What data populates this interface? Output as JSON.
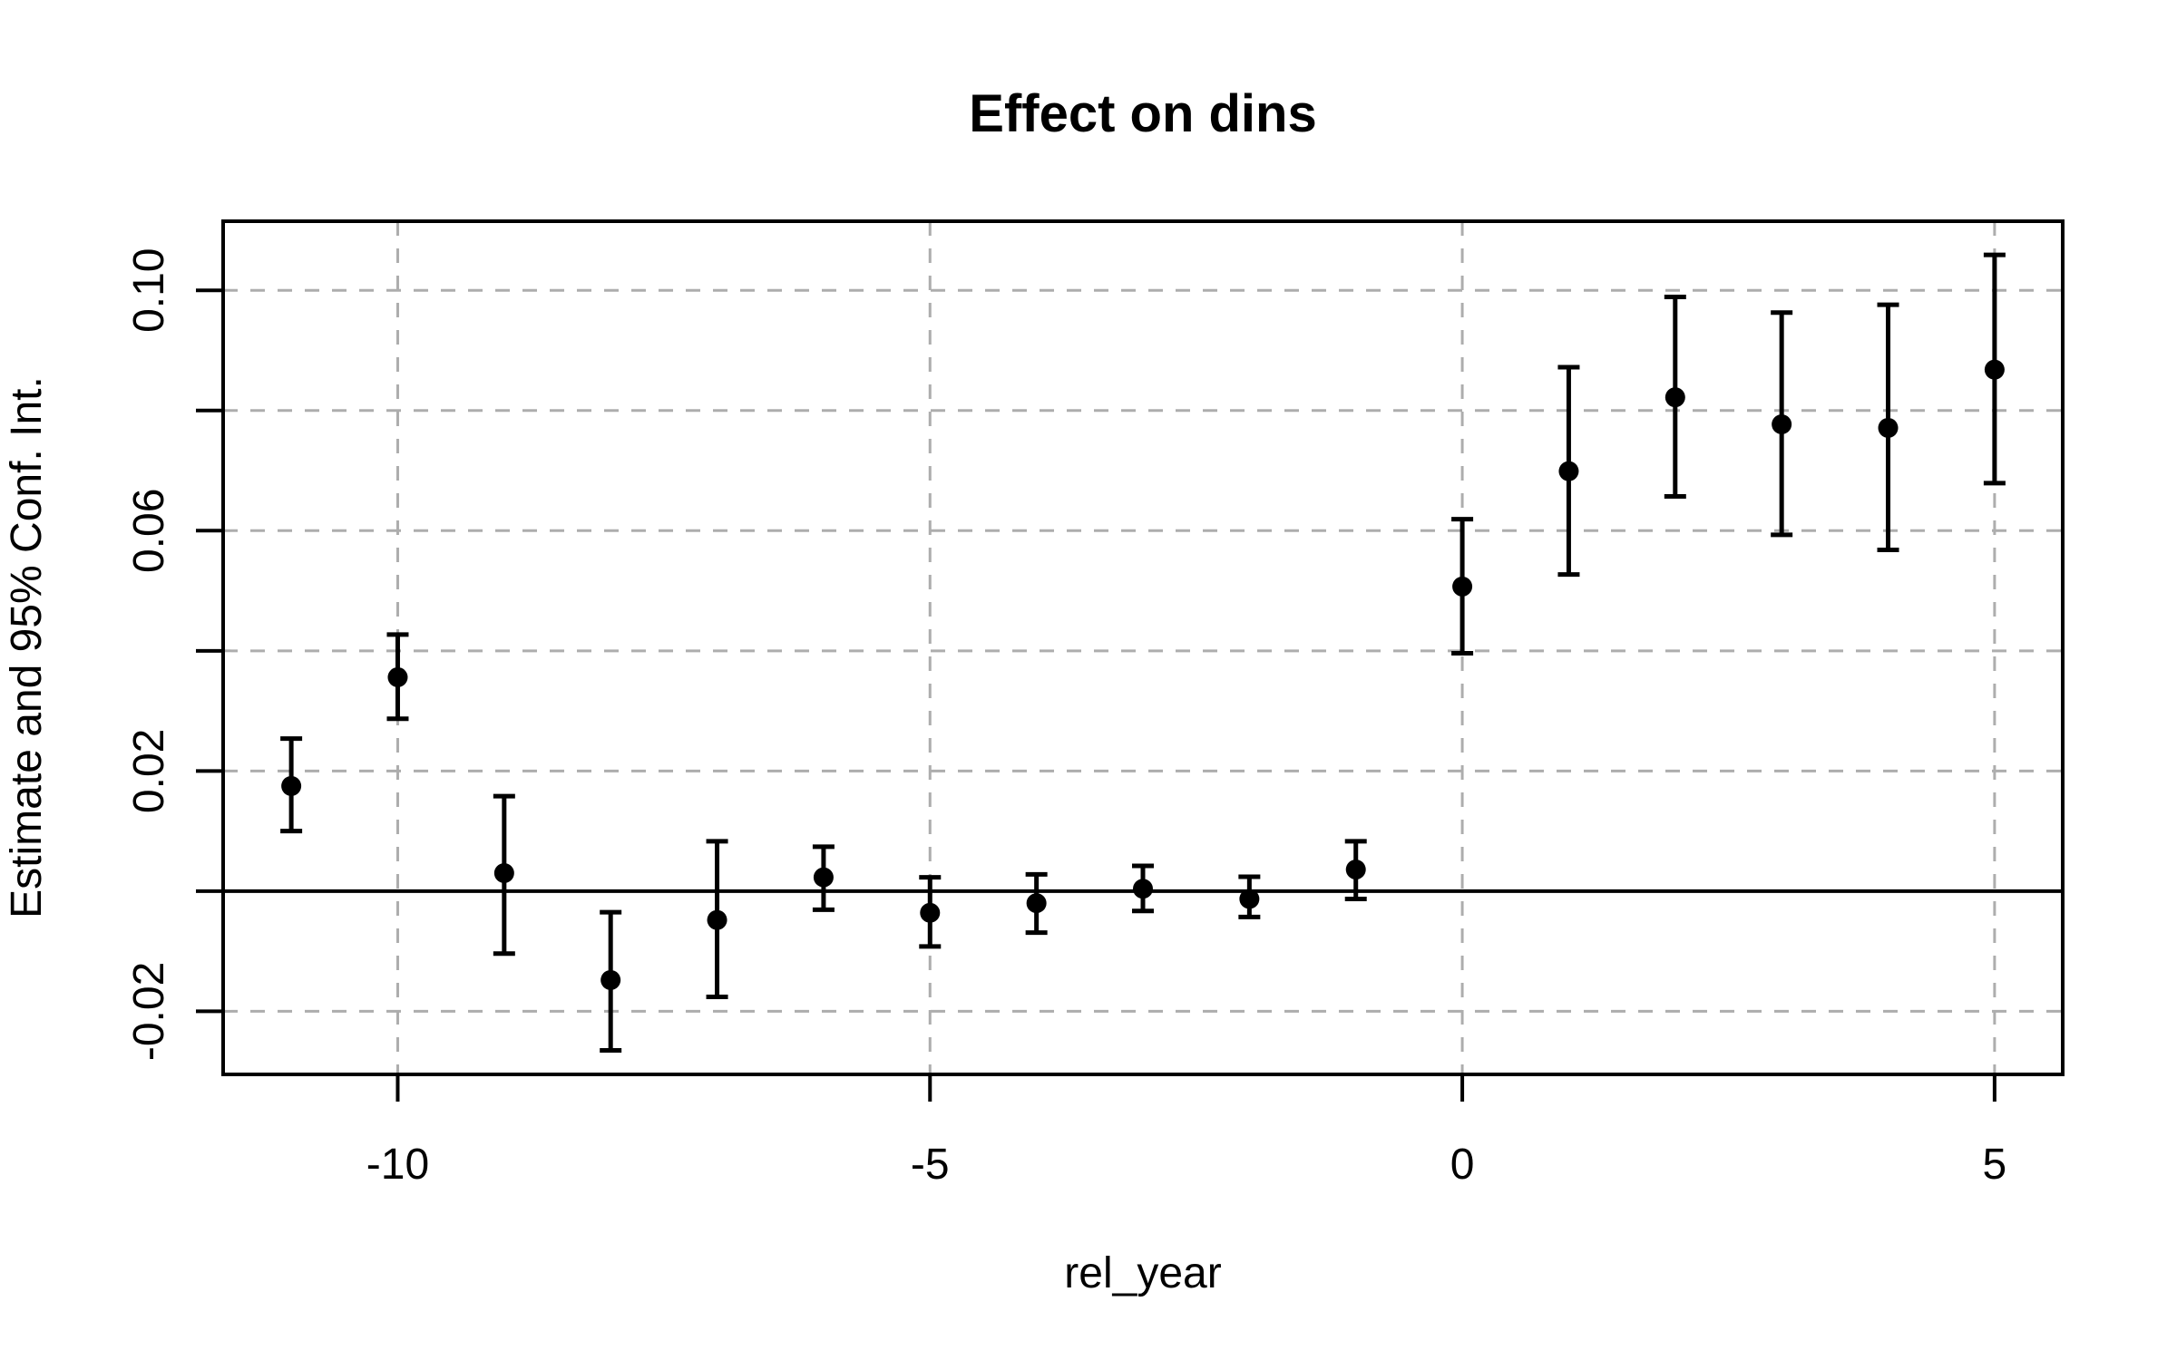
{
  "page": {
    "background": "#ffffff"
  },
  "chart_data": {
    "type": "scatter",
    "subtype": "point-estimates-with-error-bars",
    "title": "Effect on dins",
    "xlabel": "rel_year",
    "ylabel": "Estimate and 95% Conf. Int.",
    "legend": "none",
    "grid": {
      "show": true,
      "line_style": "dashed",
      "color": "#adadad"
    },
    "zero_line": {
      "show": true,
      "color": "#000000"
    },
    "point_color": "#000000",
    "error_bar_color": "#000000",
    "box_color": "#000000",
    "xlim": [
      -11.64,
      5.64
    ],
    "ylim": [
      -0.0305,
      0.1115
    ],
    "x_ticks": [
      {
        "value": -10,
        "label": "-10"
      },
      {
        "value": -5,
        "label": "-5"
      },
      {
        "value": 0,
        "label": "0"
      },
      {
        "value": 5,
        "label": "5"
      }
    ],
    "y_ticks": [
      {
        "value": -0.02,
        "label": "-0.02"
      },
      {
        "value": 0.0,
        "label": ""
      },
      {
        "value": 0.02,
        "label": "0.02"
      },
      {
        "value": 0.04,
        "label": ""
      },
      {
        "value": 0.06,
        "label": "0.06"
      },
      {
        "value": 0.08,
        "label": ""
      },
      {
        "value": 0.1,
        "label": "0.10"
      }
    ],
    "points": [
      {
        "x": -11,
        "estimate": 0.0175,
        "ci_low": 0.01,
        "ci_high": 0.0254
      },
      {
        "x": -10,
        "estimate": 0.0356,
        "ci_low": 0.0287,
        "ci_high": 0.0427
      },
      {
        "x": -9,
        "estimate": 0.003,
        "ci_low": -0.0104,
        "ci_high": 0.0158
      },
      {
        "x": -8,
        "estimate": -0.0148,
        "ci_low": -0.0265,
        "ci_high": -0.0035
      },
      {
        "x": -7,
        "estimate": -0.0048,
        "ci_low": -0.0176,
        "ci_high": 0.0083
      },
      {
        "x": -6,
        "estimate": 0.0023,
        "ci_low": -0.0031,
        "ci_high": 0.0074
      },
      {
        "x": -5,
        "estimate": -0.0036,
        "ci_low": -0.0092,
        "ci_high": 0.0023
      },
      {
        "x": -4,
        "estimate": -0.002,
        "ci_low": -0.0069,
        "ci_high": 0.0028
      },
      {
        "x": -3,
        "estimate": 0.0004,
        "ci_low": -0.0033,
        "ci_high": 0.0042
      },
      {
        "x": -2,
        "estimate": -0.0013,
        "ci_low": -0.0043,
        "ci_high": 0.0024
      },
      {
        "x": -1,
        "estimate": 0.0036,
        "ci_low": -0.0013,
        "ci_high": 0.0083
      },
      {
        "x": 0,
        "estimate": 0.0507,
        "ci_low": 0.0396,
        "ci_high": 0.0619
      },
      {
        "x": 1,
        "estimate": 0.0699,
        "ci_low": 0.0527,
        "ci_high": 0.0872
      },
      {
        "x": 2,
        "estimate": 0.0822,
        "ci_low": 0.0657,
        "ci_high": 0.0989
      },
      {
        "x": 3,
        "estimate": 0.0777,
        "ci_low": 0.0593,
        "ci_high": 0.0963
      },
      {
        "x": 4,
        "estimate": 0.0771,
        "ci_low": 0.0568,
        "ci_high": 0.0976
      },
      {
        "x": 5,
        "estimate": 0.0868,
        "ci_low": 0.0679,
        "ci_high": 0.1059
      }
    ]
  }
}
